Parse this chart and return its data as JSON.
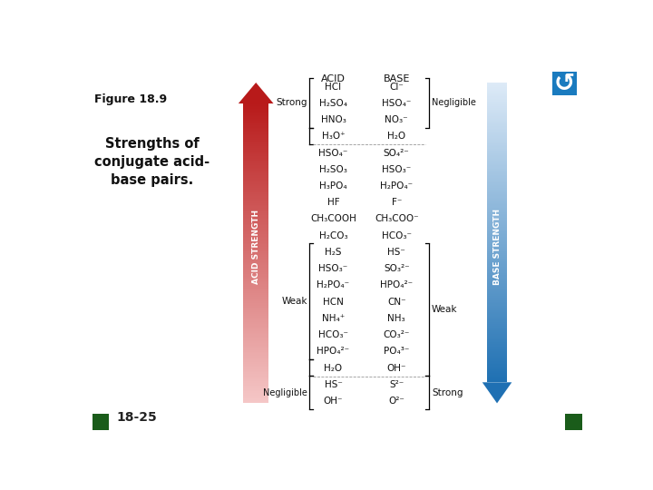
{
  "title": "Figure 18.9",
  "subtitle": "Strengths of\nconjugate acid-\nbase pairs.",
  "page_num": "18-25",
  "bg_color": "#ffffff",
  "acid_col_header": "ACID",
  "base_col_header": "BASE",
  "acid_label": "ACID STRENGTH",
  "base_label": "BASE STRENGTH",
  "pairs": [
    {
      "acid": "HCl",
      "base": "Cl⁻",
      "group": "strong_top"
    },
    {
      "acid": "H₂SO₄",
      "base": "HSO₄⁻",
      "group": "strong_top"
    },
    {
      "acid": "HNO₃",
      "base": "NO₃⁻",
      "group": "strong_top"
    },
    {
      "acid": "H₃O⁺",
      "base": "H₂O",
      "group": "strong_single"
    },
    {
      "acid": "HSO₄⁻",
      "base": "SO₄²⁻",
      "group": "middle"
    },
    {
      "acid": "H₂SO₃",
      "base": "HSO₃⁻",
      "group": "middle"
    },
    {
      "acid": "H₃PO₄",
      "base": "H₂PO₄⁻",
      "group": "middle"
    },
    {
      "acid": "HF",
      "base": "F⁻",
      "group": "middle"
    },
    {
      "acid": "CH₃COOH",
      "base": "CH₃COO⁻",
      "group": "middle"
    },
    {
      "acid": "H₂CO₃",
      "base": "HCO₃⁻",
      "group": "middle"
    },
    {
      "acid": "H₂S",
      "base": "HS⁻",
      "group": "weak"
    },
    {
      "acid": "HSO₃⁻",
      "base": "SO₃²⁻",
      "group": "weak"
    },
    {
      "acid": "H₂PO₄⁻",
      "base": "HPO₄²⁻",
      "group": "weak"
    },
    {
      "acid": "HCN",
      "base": "CN⁻",
      "group": "weak"
    },
    {
      "acid": "NH₄⁺",
      "base": "NH₃",
      "group": "weak"
    },
    {
      "acid": "HCO₃⁻",
      "base": "CO₃²⁻",
      "group": "weak"
    },
    {
      "acid": "HPO₄²⁻",
      "base": "PO₄³⁻",
      "group": "weak"
    },
    {
      "acid": "H₂O",
      "base": "OH⁻",
      "group": "weak_single"
    },
    {
      "acid": "HS⁻",
      "base": "S²⁻",
      "group": "negligible"
    },
    {
      "acid": "OH⁻",
      "base": "O²⁻",
      "group": "negligible"
    }
  ],
  "strong_label": "Strong",
  "weak_label": "Weak",
  "negligible_label": "Negligible",
  "negligible_base_label": "Negligible",
  "weak_base_label": "Weak",
  "strong_base_label": "Strong",
  "red_dark": [
    0.72,
    0.1,
    0.1
  ],
  "red_light": [
    0.96,
    0.78,
    0.78
  ],
  "blue_dark": [
    0.12,
    0.44,
    0.7
  ],
  "blue_light": [
    0.87,
    0.92,
    0.97
  ],
  "nav_color": "#1a5c1a",
  "link_color": "#1a7bbf",
  "text_color": "#111111"
}
